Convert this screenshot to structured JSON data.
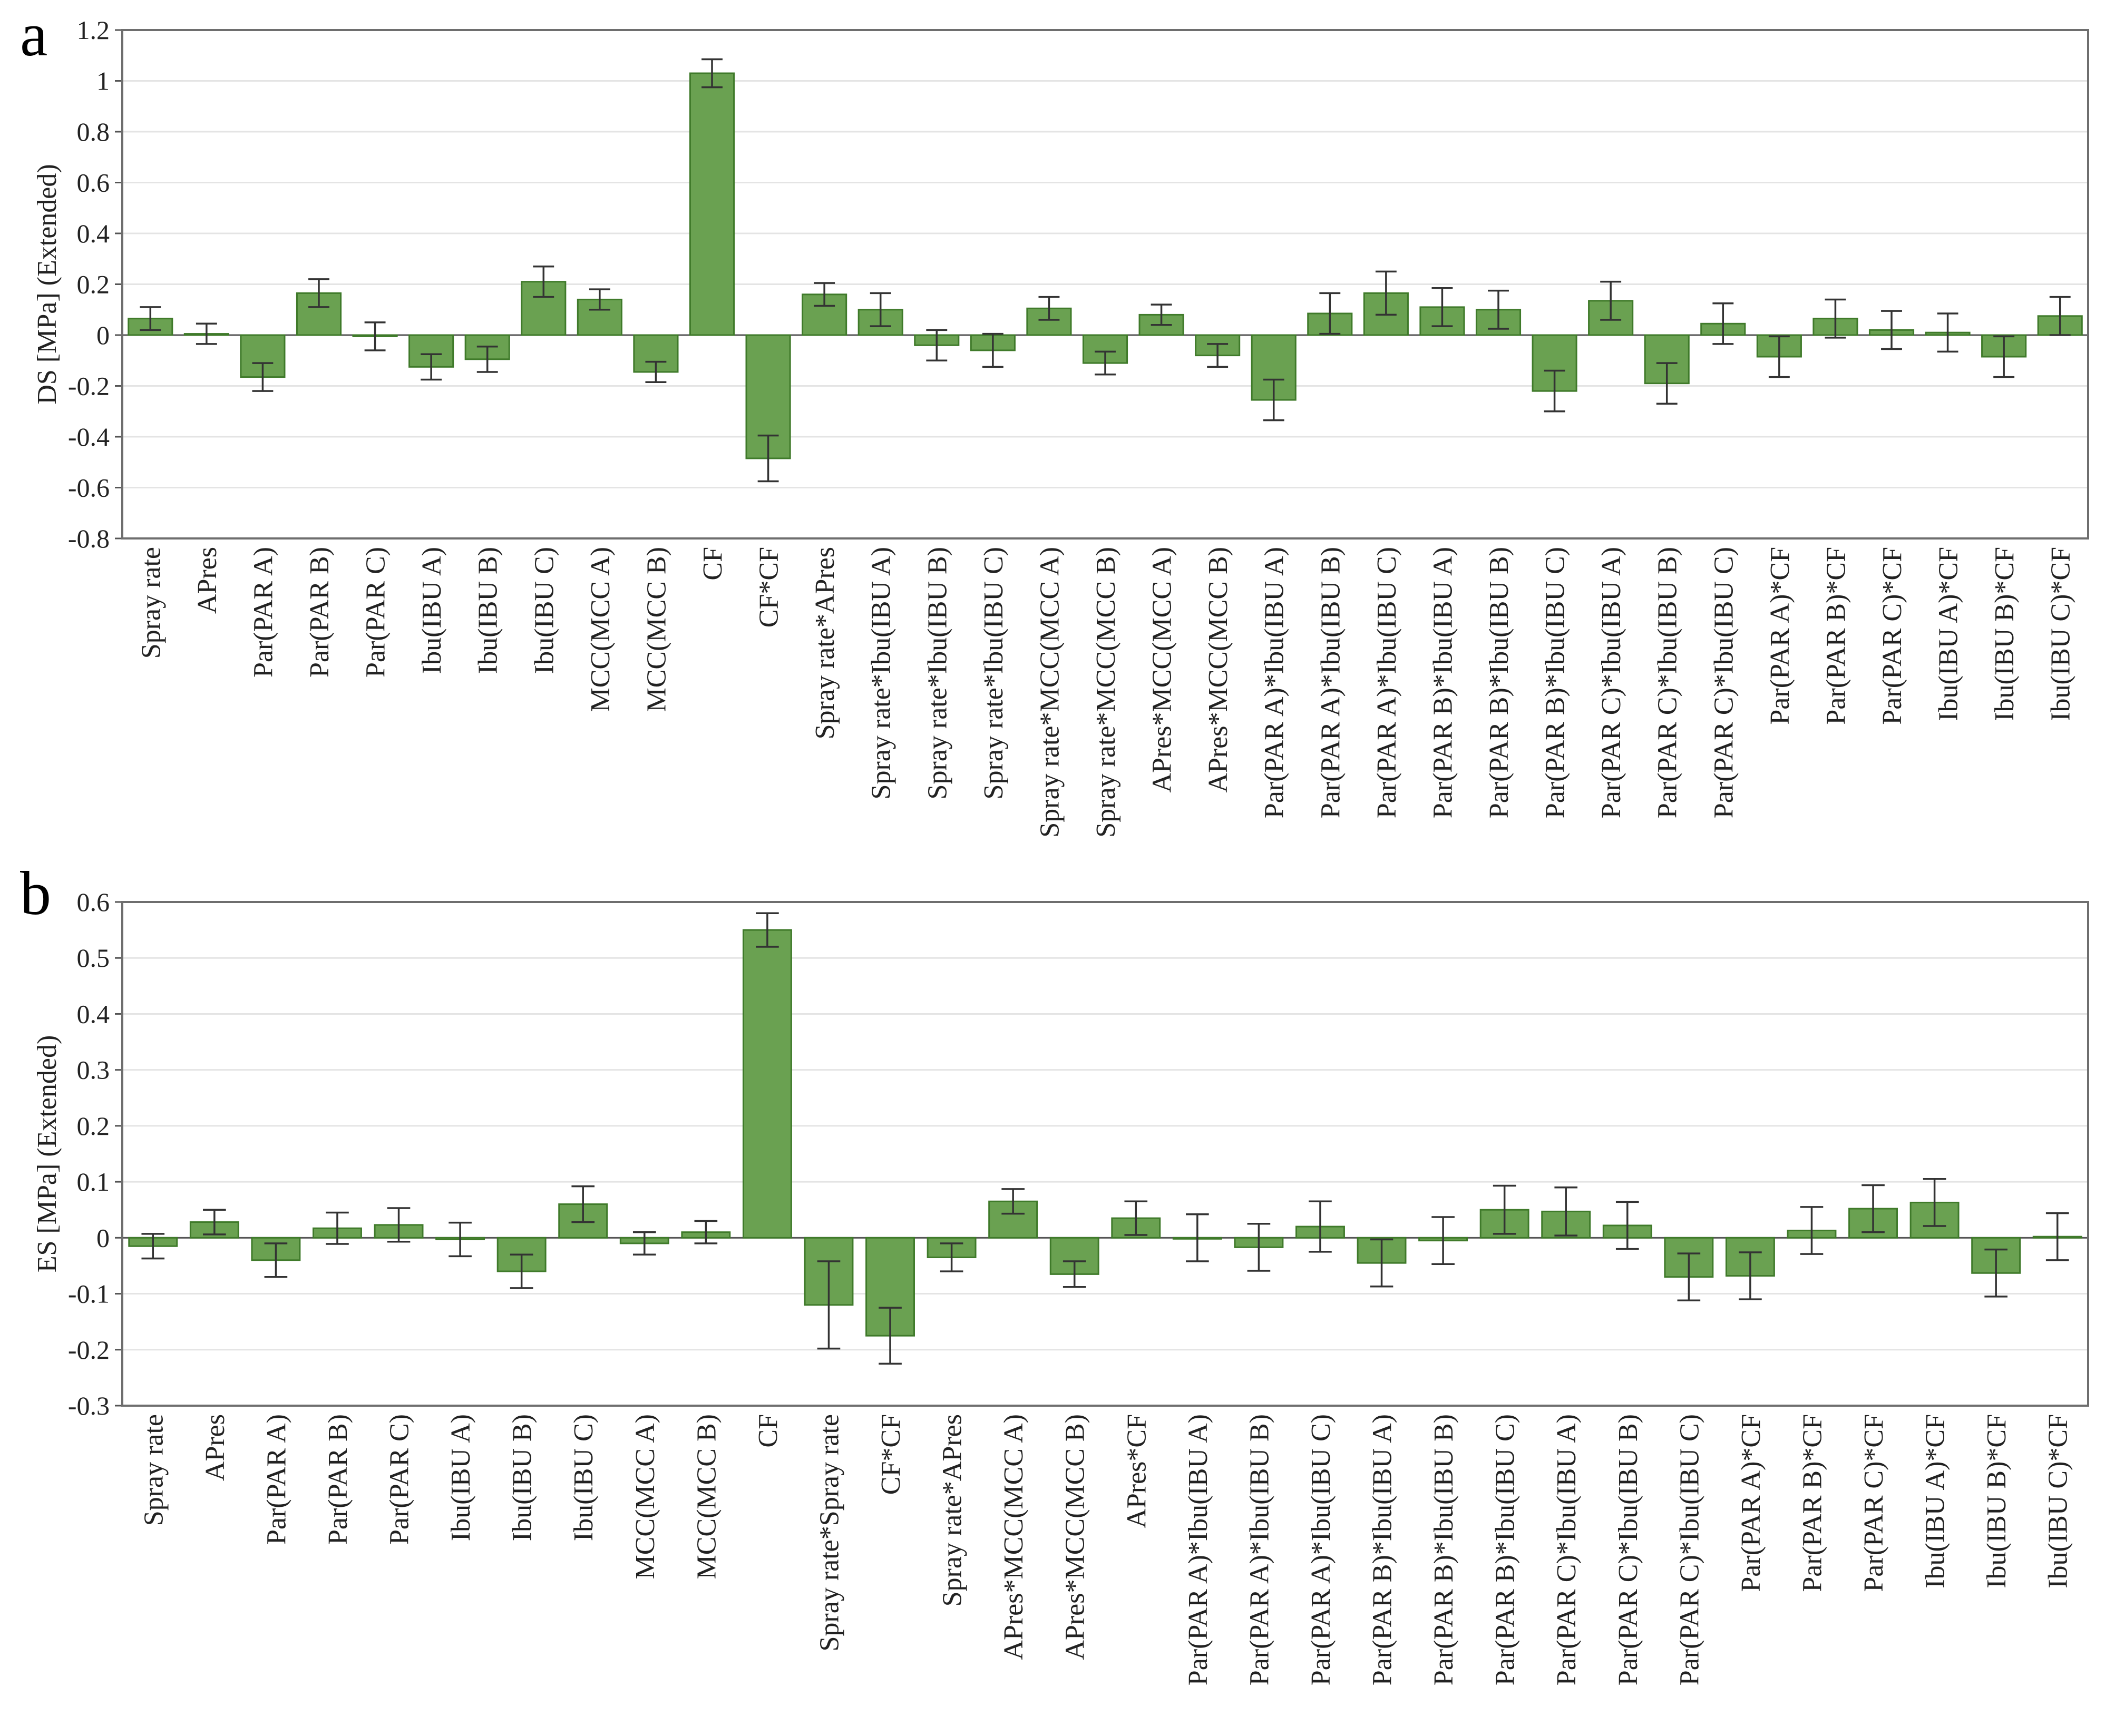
{
  "chart_data": [
    {
      "type": "bar",
      "panel": "a",
      "ylabel": "DS [MPa] (Extended)",
      "ylim": [
        -0.8,
        1.2
      ],
      "yticks": [
        1.2,
        1,
        0.8,
        0.6,
        0.4,
        0.2,
        0,
        -0.2,
        -0.4,
        -0.6,
        -0.8
      ],
      "ytick_labels": [
        "1.2",
        "1",
        "0.8",
        "0.6",
        "0.4",
        "0.2",
        "0",
        "-0.2",
        "-0.4",
        "-0.6",
        "-0.8"
      ],
      "grid": true,
      "categories": [
        "Spray rate",
        "APres",
        "Par(PAR A)",
        "Par(PAR B)",
        "Par(PAR C)",
        "Ibu(IBU A)",
        "Ibu(IBU B)",
        "Ibu(IBU C)",
        "MCC(MCC A)",
        "MCC(MCC B)",
        "CF",
        "CF*CF",
        "Spray rate*APres",
        "Spray rate*Ibu(IBU A)",
        "Spray rate*Ibu(IBU B)",
        "Spray rate*Ibu(IBU C)",
        "Spray rate*MCC(MCC A)",
        "Spray rate*MCC(MCC B)",
        "APres*MCC(MCC A)",
        "APres*MCC(MCC B)",
        "Par(PAR A)*Ibu(IBU A)",
        "Par(PAR A)*Ibu(IBU B)",
        "Par(PAR A)*Ibu(IBU C)",
        "Par(PAR B)*Ibu(IBU A)",
        "Par(PAR B)*Ibu(IBU B)",
        "Par(PAR B)*Ibu(IBU C)",
        "Par(PAR C)*Ibu(IBU A)",
        "Par(PAR C)*Ibu(IBU B)",
        "Par(PAR C)*Ibu(IBU C)",
        "Par(PAR A)*CF",
        "Par(PAR B)*CF",
        "Par(PAR C)*CF",
        "Ibu(IBU A)*CF",
        "Ibu(IBU B)*CF",
        "Ibu(IBU C)*CF"
      ],
      "values": [
        0.065,
        0.005,
        -0.165,
        0.165,
        -0.005,
        -0.125,
        -0.095,
        0.21,
        0.14,
        -0.145,
        1.03,
        -0.485,
        0.16,
        0.1,
        -0.04,
        -0.06,
        0.105,
        -0.11,
        0.08,
        -0.08,
        -0.255,
        0.085,
        0.165,
        0.11,
        0.1,
        -0.22,
        0.135,
        -0.19,
        0.045,
        -0.085,
        0.065,
        0.02,
        0.01,
        -0.085,
        0.075
      ],
      "errors": [
        0.045,
        0.04,
        0.055,
        0.055,
        0.055,
        0.05,
        0.05,
        0.06,
        0.04,
        0.04,
        0.055,
        0.09,
        0.045,
        0.065,
        0.06,
        0.065,
        0.045,
        0.045,
        0.04,
        0.045,
        0.08,
        0.08,
        0.085,
        0.075,
        0.075,
        0.08,
        0.075,
        0.08,
        0.08,
        0.08,
        0.075,
        0.075,
        0.075,
        0.08,
        0.075
      ]
    },
    {
      "type": "bar",
      "panel": "b",
      "ylabel": "ES [MPa] (Extended)",
      "ylim": [
        -0.3,
        0.6
      ],
      "yticks": [
        0.6,
        0.5,
        0.4,
        0.3,
        0.2,
        0.1,
        0,
        -0.1,
        -0.2,
        -0.3
      ],
      "ytick_labels": [
        "0.6",
        "0.5",
        "0.4",
        "0.3",
        "0.2",
        "0.1",
        "0",
        "-0.1",
        "-0.2",
        "-0.3"
      ],
      "grid": true,
      "categories": [
        "Spray rate",
        "APres",
        "Par(PAR A)",
        "Par(PAR B)",
        "Par(PAR C)",
        "Ibu(IBU A)",
        "Ibu(IBU B)",
        "Ibu(IBU C)",
        "MCC(MCC A)",
        "MCC(MCC B)",
        "CF",
        "Spray rate*Spray rate",
        "CF*CF",
        "Spray rate*APres",
        "APres*MCC(MCC A)",
        "APres*MCC(MCC B)",
        "APres*CF",
        "Par(PAR A)*Ibu(IBU A)",
        "Par(PAR A)*Ibu(IBU B)",
        "Par(PAR A)*Ibu(IBU C)",
        "Par(PAR B)*Ibu(IBU A)",
        "Par(PAR B)*Ibu(IBU B)",
        "Par(PAR B)*Ibu(IBU C)",
        "Par(PAR C)*Ibu(IBU A)",
        "Par(PAR C)*Ibu(IBU B)",
        "Par(PAR C)*Ibu(IBU C)",
        "Par(PAR A)*CF",
        "Par(PAR B)*CF",
        "Par(PAR C)*CF",
        "Ibu(IBU A)*CF",
        "Ibu(IBU B)*CF",
        "Ibu(IBU C)*CF"
      ],
      "values": [
        -0.015,
        0.028,
        -0.04,
        0.017,
        0.023,
        -0.003,
        -0.06,
        0.06,
        -0.01,
        0.01,
        0.55,
        -0.12,
        -0.175,
        -0.035,
        0.065,
        -0.065,
        0.035,
        0.0,
        -0.017,
        0.02,
        -0.045,
        -0.005,
        0.05,
        0.047,
        0.022,
        -0.07,
        -0.068,
        0.013,
        0.052,
        0.063,
        -0.063,
        0.002
      ],
      "errors": [
        0.022,
        0.022,
        0.03,
        0.028,
        0.03,
        0.03,
        0.03,
        0.032,
        0.02,
        0.02,
        0.03,
        0.078,
        0.05,
        0.025,
        0.022,
        0.023,
        0.03,
        0.042,
        0.042,
        0.045,
        0.042,
        0.042,
        0.043,
        0.043,
        0.042,
        0.042,
        0.042,
        0.042,
        0.042,
        0.042,
        0.042,
        0.042
      ]
    }
  ]
}
